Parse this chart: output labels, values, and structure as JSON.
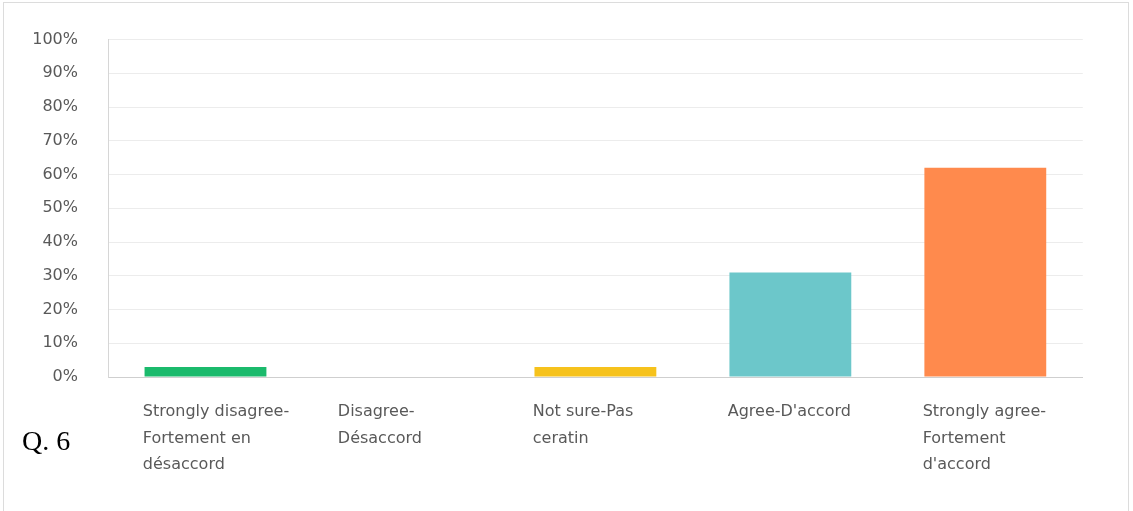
{
  "chart_data": {
    "type": "bar",
    "categories": [
      "Strongly disagree-Fortement en désaccord",
      "Disagree-Désaccord",
      "Not sure-Pas ceratin",
      "Agree-D'accord",
      "Strongly agree-Fortement d'accord"
    ],
    "values": [
      3,
      0,
      3,
      31,
      62
    ],
    "colors": [
      "#1bba6c",
      null,
      "#f6c21c",
      "#6cc7ca",
      "#ff8a4d"
    ],
    "ylim": [
      0,
      100
    ],
    "yticks": [
      {
        "value": 0,
        "label": "0%"
      },
      {
        "value": 10,
        "label": "10%"
      },
      {
        "value": 20,
        "label": "20%"
      },
      {
        "value": 30,
        "label": "30%"
      },
      {
        "value": 40,
        "label": "40%"
      },
      {
        "value": 50,
        "label": "50%"
      },
      {
        "value": 60,
        "label": "60%"
      },
      {
        "value": 70,
        "label": "70%"
      },
      {
        "value": 80,
        "label": "80%"
      },
      {
        "value": 90,
        "label": "90%"
      },
      {
        "value": 100,
        "label": "100%"
      }
    ],
    "grid": "y",
    "annotations": [
      "Q. 6"
    ]
  }
}
